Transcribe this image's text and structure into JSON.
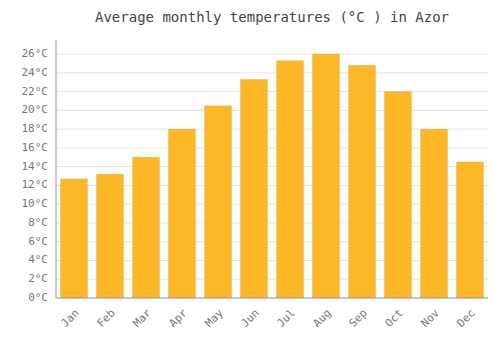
{
  "chart_data": {
    "type": "bar",
    "title": "Average monthly temperatures (°C ) in Azor",
    "categories": [
      "Jan",
      "Feb",
      "Mar",
      "Apr",
      "May",
      "Jun",
      "Jul",
      "Aug",
      "Sep",
      "Oct",
      "Nov",
      "Dec"
    ],
    "values": [
      12.7,
      13.2,
      15.0,
      18.0,
      20.5,
      23.3,
      25.3,
      26.0,
      24.8,
      22.0,
      18.0,
      14.5
    ],
    "color": "#FDB827",
    "ylim": [
      0,
      27.5
    ],
    "yticks": [
      {
        "value": 0,
        "label": "0°C"
      },
      {
        "value": 2,
        "label": "2°C"
      },
      {
        "value": 4,
        "label": "4°C"
      },
      {
        "value": 6,
        "label": "6°C"
      },
      {
        "value": 8,
        "label": "8°C"
      },
      {
        "value": 10,
        "label": "10°C"
      },
      {
        "value": 12,
        "label": "12°C"
      },
      {
        "value": 14,
        "label": "14°C"
      },
      {
        "value": 16,
        "label": "16°C"
      },
      {
        "value": 18,
        "label": "18°C"
      },
      {
        "value": 20,
        "label": "20°C"
      },
      {
        "value": 22,
        "label": "22°C"
      },
      {
        "value": 24,
        "label": "24°C"
      },
      {
        "value": 26,
        "label": "26°C"
      }
    ],
    "grid": true
  }
}
